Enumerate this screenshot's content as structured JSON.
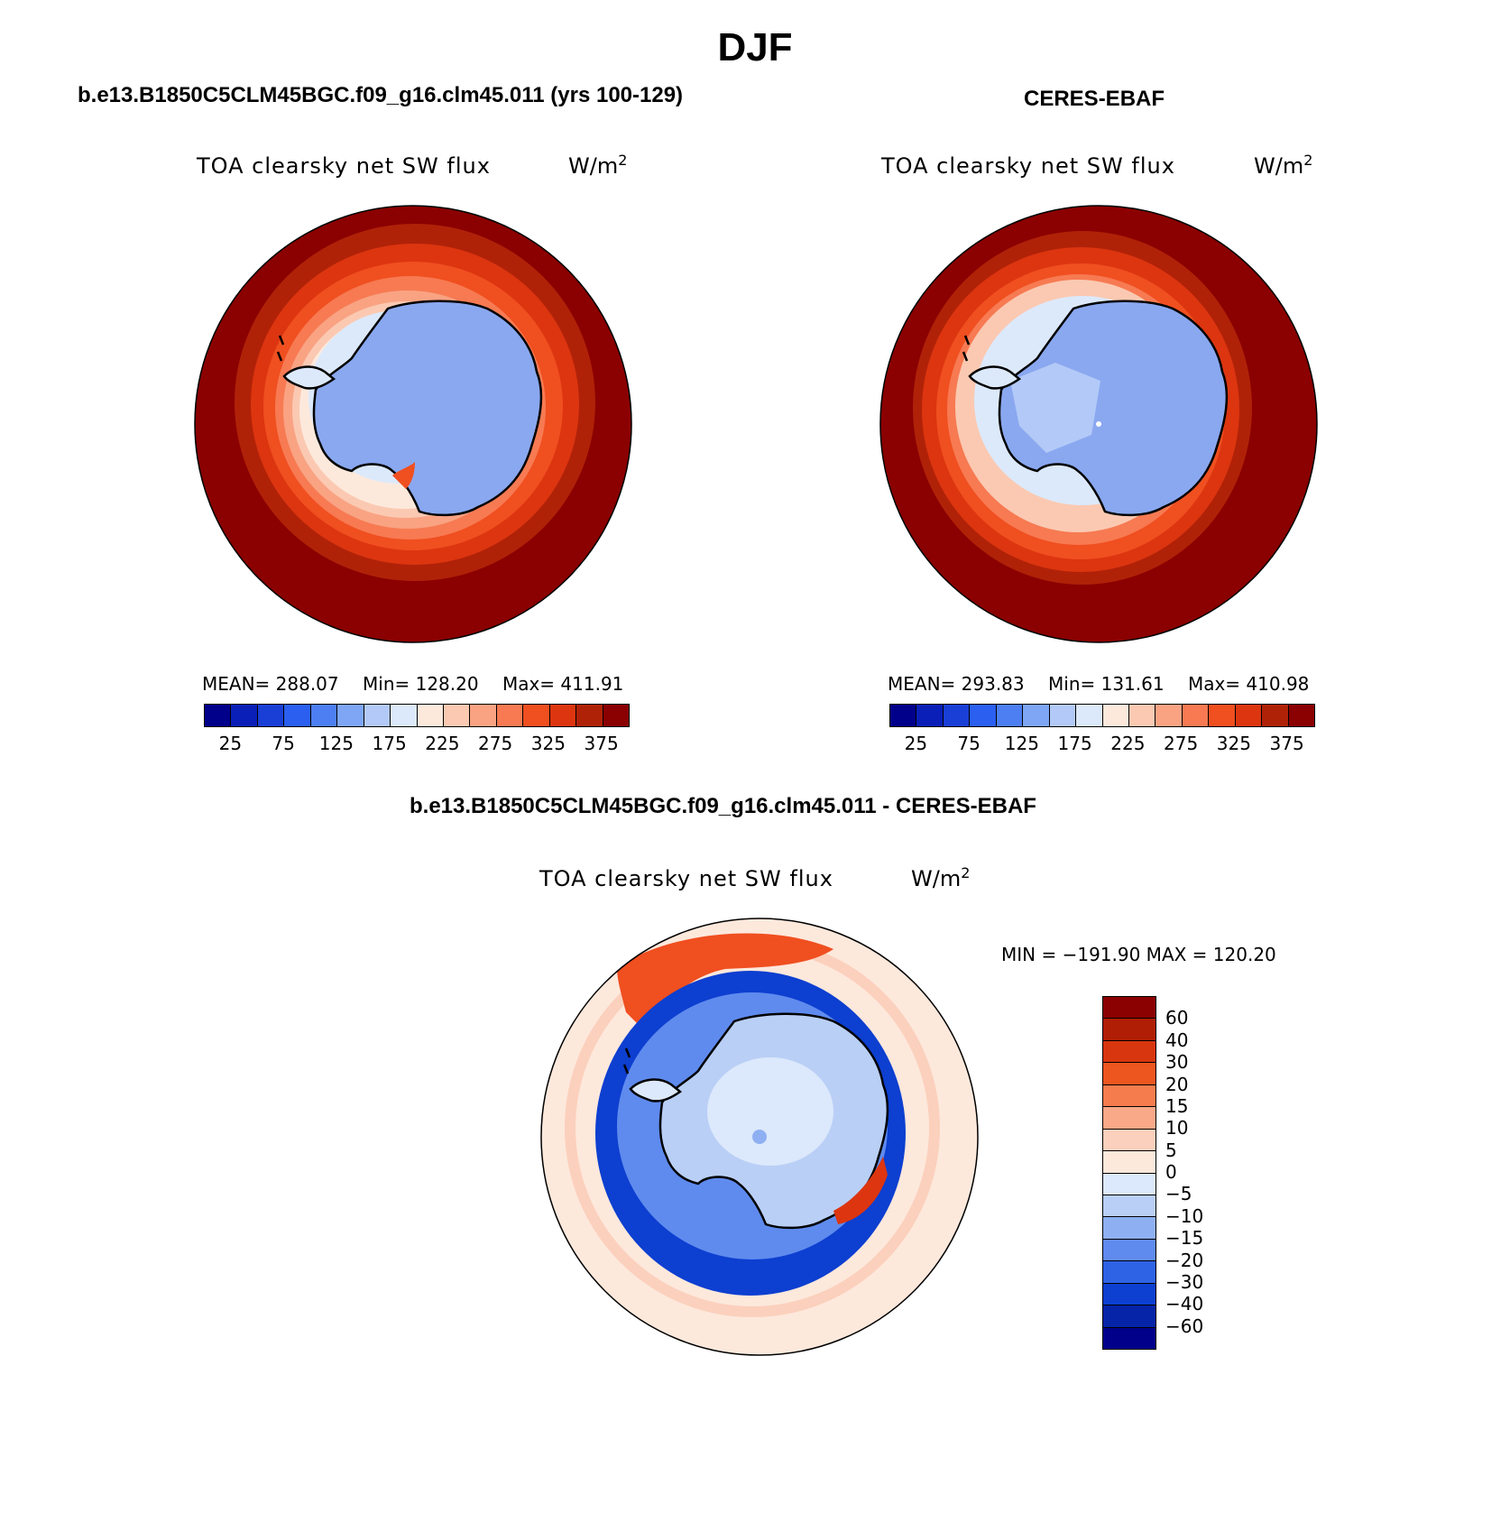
{
  "figure": {
    "title": "DJF",
    "variable": "TOA clearsky net SW flux",
    "units_text": "W/m",
    "units_sup": "2"
  },
  "panels": [
    {
      "id": "model",
      "title": "b.e13.B1850C5CLM45BGC.f09_g16.clm45.011 (yrs 100-129)",
      "stats": {
        "mean": "MEAN= 288.07",
        "min": "Min= 128.20",
        "max": "Max= 411.91"
      }
    },
    {
      "id": "obs",
      "title": "CERES-EBAF",
      "stats": {
        "mean": "MEAN= 293.83",
        "min": "Min= 131.61",
        "max": "Max= 410.98"
      }
    },
    {
      "id": "diff",
      "title": "b.e13.B1850C5CLM45BGC.f09_g16.clm45.011 - CERES-EBAF",
      "stats_text": "MIN = −191.90 MAX = 120.20"
    }
  ],
  "colorbar_abs": {
    "labels": [
      "25",
      "75",
      "125",
      "175",
      "225",
      "275",
      "325",
      "375"
    ],
    "colors": [
      "#00008b",
      "#0a1fb8",
      "#1a3fd6",
      "#2a5ff0",
      "#4d7ff2",
      "#7ea6f4",
      "#b3c9f7",
      "#dce9fb",
      "#fde9dc",
      "#fbc9b2",
      "#f9a383",
      "#f77a52",
      "#f04f20",
      "#dc3510",
      "#b02208",
      "#8b0000"
    ]
  },
  "colorbar_diff": {
    "labels": [
      "60",
      "40",
      "30",
      "20",
      "15",
      "10",
      "5",
      "0",
      "−5",
      "−10",
      "−15",
      "−20",
      "−30",
      "−40",
      "−60"
    ],
    "colors": [
      "#8b0000",
      "#b01e06",
      "#d8360e",
      "#ee5620",
      "#f57c4c",
      "#f9a888",
      "#fbd0bc",
      "#fde8dc",
      "#dce8fb",
      "#b9cff6",
      "#8eb0f2",
      "#5f8bee",
      "#2f63e6",
      "#0d3fd0",
      "#0524a8",
      "#00008b"
    ]
  },
  "map_colors": {
    "coastline": "#000000",
    "ocean_far": "#8b0000",
    "ice_interior": "#8aa8f0",
    "diff_far": "#fde6d8",
    "diff_inner": "#0d3fd0"
  }
}
